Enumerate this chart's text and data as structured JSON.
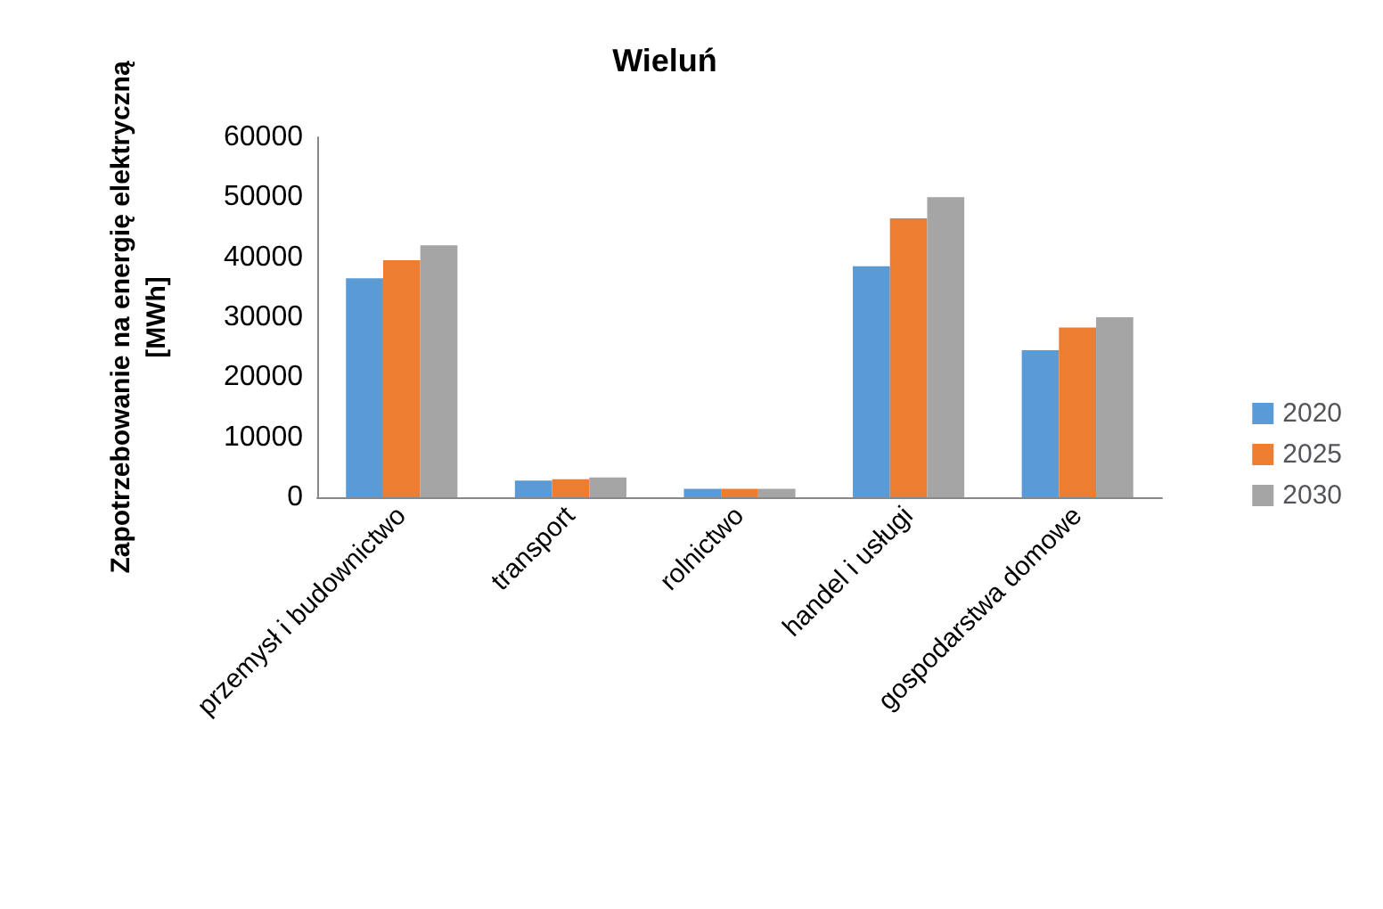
{
  "chart_data": {
    "type": "bar",
    "title": "Wieluń",
    "ylabel": "Zapotrzebowanie na energię elektryczną\n[MWh]",
    "categories": [
      "przemysł i budownictwo",
      "transport",
      "rolnictwo",
      "handel i usługi",
      "gospodarstwa domowe"
    ],
    "series": [
      {
        "name": "2020",
        "color": "#5b9bd5",
        "values": [
          36500,
          2800,
          1400,
          38500,
          24500
        ]
      },
      {
        "name": "2025",
        "color": "#ed7d31",
        "values": [
          39500,
          3000,
          1400,
          46500,
          28300
        ]
      },
      {
        "name": "2030",
        "color": "#a5a5a5",
        "values": [
          42000,
          3300,
          1400,
          50000,
          30000
        ]
      }
    ],
    "ylim": [
      0,
      60000
    ],
    "yticks": [
      0,
      10000,
      20000,
      30000,
      40000,
      50000,
      60000
    ],
    "grid": false,
    "legend": "right"
  }
}
